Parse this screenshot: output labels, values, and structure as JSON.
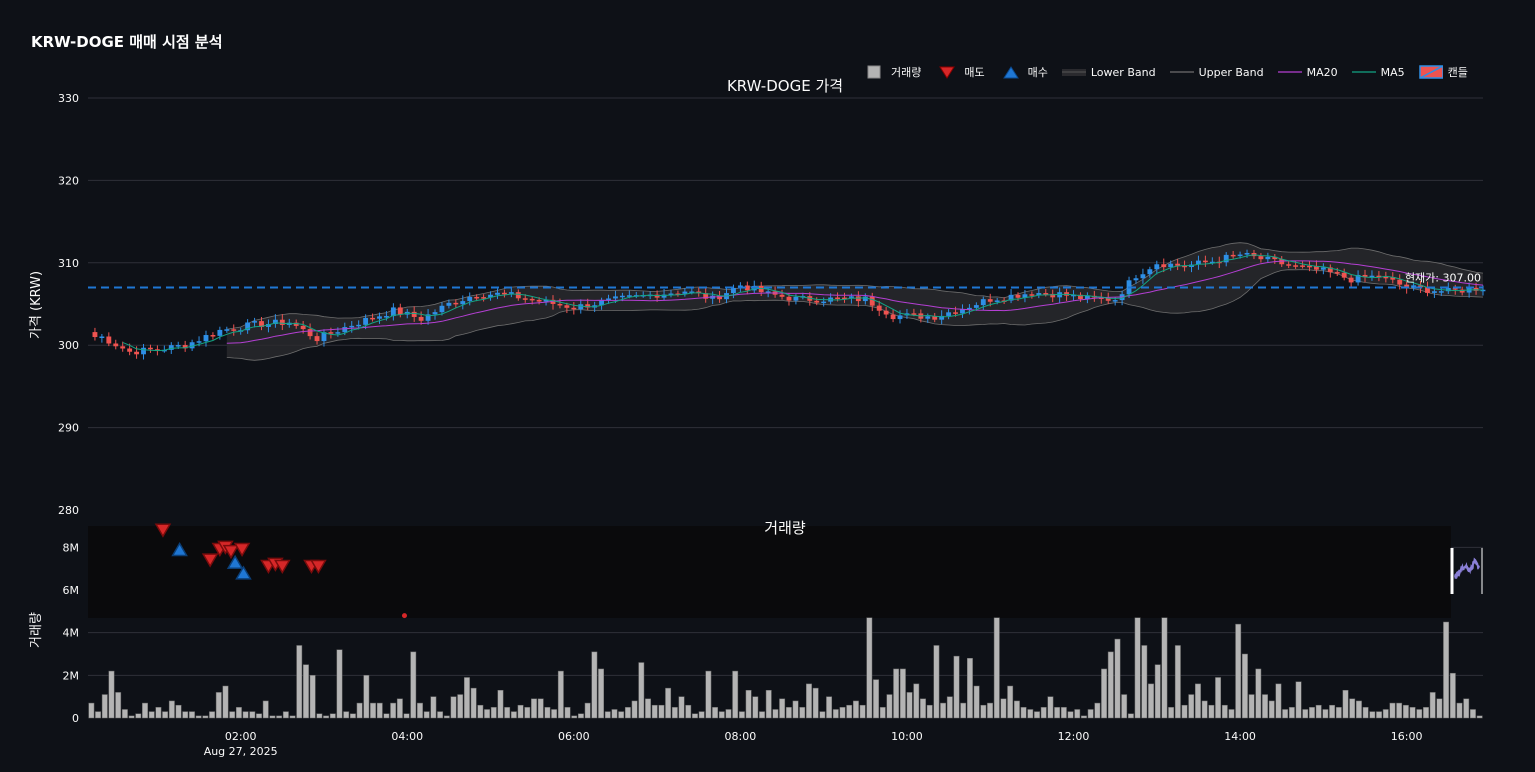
{
  "title": "KRW-DOGE 매매 시점 분석",
  "colors": {
    "background": "#0e1117",
    "grid": "#2e3038",
    "up": "#2e8fe6",
    "down": "#ef5350",
    "ma5": "#13a584",
    "ma20": "#b43fd3",
    "band": "#6e6e6e",
    "current": "#1f77d4",
    "volume": "#b4b4b4",
    "sell": "#d62728",
    "buy": "#1f77d4"
  },
  "legend": {
    "items": [
      {
        "key": "volume",
        "label": "거래량",
        "icon": "gray-square-icon"
      },
      {
        "key": "sell",
        "label": "매도",
        "icon": "down-triangle-icon"
      },
      {
        "key": "buy",
        "label": "매수",
        "icon": "up-triangle-icon"
      },
      {
        "key": "lower",
        "label": "Lower Band",
        "icon": "band-fill-icon"
      },
      {
        "key": "upper",
        "label": "Upper Band",
        "icon": "gray-line-icon"
      },
      {
        "key": "ma20",
        "label": "MA20",
        "icon": "purple-line-icon"
      },
      {
        "key": "ma5",
        "label": "MA5",
        "icon": "teal-line-icon"
      },
      {
        "key": "candle",
        "label": "캔들",
        "icon": "candle-icon"
      }
    ]
  },
  "chart_data": [
    {
      "type": "candlestick",
      "subtitle": "KRW-DOGE 가격",
      "ylabel": "가격 (KRW)",
      "ylim": [
        280,
        330
      ],
      "yticks": [
        280,
        290,
        300,
        310,
        320,
        330
      ],
      "current_price": 307,
      "current_label": "현재가: 307.00",
      "series_names": [
        "캔들",
        "MA5",
        "MA20",
        "Upper Band",
        "Lower Band"
      ],
      "close_anchors": [
        [
          "00:20",
          301.0
        ],
        [
          "00:40",
          299.2
        ],
        [
          "01:00",
          299.5
        ],
        [
          "01:20",
          300.0
        ],
        [
          "01:45",
          301.8
        ],
        [
          "02:10",
          302.5
        ],
        [
          "02:35",
          302.8
        ],
        [
          "02:55",
          300.8
        ],
        [
          "03:20",
          302.5
        ],
        [
          "03:50",
          304.2
        ],
        [
          "04:10",
          303.2
        ],
        [
          "04:30",
          305.0
        ],
        [
          "04:50",
          306.2
        ],
        [
          "05:10",
          306.2
        ],
        [
          "05:30",
          305.5
        ],
        [
          "06:00",
          304.6
        ],
        [
          "06:30",
          305.5
        ],
        [
          "07:00",
          306.2
        ],
        [
          "07:20",
          306.6
        ],
        [
          "07:40",
          305.6
        ],
        [
          "08:00",
          307.3
        ],
        [
          "08:20",
          306.2
        ],
        [
          "08:40",
          305.6
        ],
        [
          "09:10",
          305.6
        ],
        [
          "09:30",
          305.6
        ],
        [
          "09:50",
          303.6
        ],
        [
          "10:20",
          303.5
        ],
        [
          "10:40",
          304.5
        ],
        [
          "11:00",
          305.6
        ],
        [
          "11:30",
          306.4
        ],
        [
          "11:50",
          306.2
        ],
        [
          "12:10",
          305.6
        ],
        [
          "12:30",
          305.6
        ],
        [
          "12:45",
          308.5
        ],
        [
          "13:00",
          310.0
        ],
        [
          "13:20",
          309.6
        ],
        [
          "13:40",
          310.2
        ],
        [
          "14:00",
          311.0
        ],
        [
          "14:20",
          310.3
        ],
        [
          "14:40",
          309.5
        ],
        [
          "15:00",
          309.0
        ],
        [
          "15:20",
          308.0
        ],
        [
          "15:40",
          308.4
        ],
        [
          "16:00",
          307.0
        ],
        [
          "16:30",
          306.5
        ],
        [
          "16:55",
          307.0
        ]
      ]
    },
    {
      "type": "bar",
      "subtitle": "거래량",
      "ylabel": "거래량",
      "ylim": [
        0,
        9000000
      ],
      "yticks": [
        0,
        2000000,
        4000000,
        6000000,
        8000000
      ],
      "ytick_labels": [
        "0",
        "2M",
        "4M",
        "6M",
        "8M"
      ],
      "bar_minutes": 5,
      "volumes": [
        0.7,
        0.3,
        1.1,
        2.2,
        1.2,
        0.4,
        0.1,
        0.2,
        0.7,
        0.3,
        0.5,
        0.3,
        0.8,
        0.6,
        0.3,
        0.3,
        0.1,
        0.1,
        0.3,
        1.2,
        1.5,
        0.3,
        0.5,
        0.3,
        0.3,
        0.2,
        0.8,
        0.1,
        0.1,
        0.3,
        0.1,
        3.4,
        2.5,
        2.0,
        0.2,
        0.1,
        0.2,
        3.2,
        0.3,
        0.2,
        0.7,
        2.0,
        0.7,
        0.7,
        0.2,
        0.7,
        0.9,
        0.2,
        3.1,
        0.7,
        0.3,
        1.0,
        0.3,
        0.1,
        1.0,
        1.1,
        1.9,
        1.4,
        0.6,
        0.4,
        0.5,
        1.3,
        0.5,
        0.3,
        0.6,
        0.5,
        0.9,
        0.9,
        0.5,
        0.4,
        2.2,
        0.5,
        0.1,
        0.2,
        0.7,
        3.1,
        2.3,
        0.3,
        0.4,
        0.3,
        0.5,
        0.8,
        2.6,
        0.9,
        0.6,
        0.6,
        1.4,
        0.5,
        1.0,
        0.6,
        0.2,
        0.3,
        2.2,
        0.5,
        0.3,
        0.4,
        2.2,
        0.3,
        1.3,
        1.0,
        0.3,
        1.3,
        0.4,
        0.9,
        0.5,
        0.8,
        0.5,
        1.6,
        1.4,
        0.3,
        1.0,
        0.4,
        0.5,
        0.6,
        0.8,
        0.6,
        4.7,
        1.8,
        0.5,
        1.1,
        2.3,
        2.3,
        1.2,
        1.6,
        0.9,
        0.6,
        3.4,
        0.7,
        1.0,
        2.9,
        0.7,
        2.8,
        1.5,
        0.6,
        0.7,
        4.7,
        0.9,
        1.5,
        0.8,
        0.5,
        0.4,
        0.3,
        0.5,
        1.0,
        0.5,
        0.5,
        0.3,
        0.4,
        0.1,
        0.4,
        0.7,
        2.3,
        3.1,
        3.7,
        1.1,
        0.2,
        4.7,
        3.4,
        1.6,
        2.5,
        4.7,
        0.5,
        3.4,
        0.6,
        1.1,
        1.6,
        0.8,
        0.6,
        1.9,
        0.6,
        0.4,
        4.4,
        3.0,
        1.1,
        2.3,
        1.1,
        0.8,
        1.6,
        0.4,
        0.5,
        1.7,
        0.4,
        0.5,
        0.6,
        0.4,
        0.6,
        0.5,
        1.3,
        0.9,
        0.8,
        0.5,
        0.3,
        0.3,
        0.4,
        0.7,
        0.7,
        0.6,
        0.5,
        0.4,
        0.5,
        1.2,
        0.9,
        4.5,
        2.1,
        0.7,
        0.9,
        0.4,
        0.1
      ]
    }
  ],
  "x_axis": {
    "tick_labels": [
      "02:00",
      "04:00",
      "06:00",
      "08:00",
      "10:00",
      "12:00",
      "14:00",
      "16:00"
    ],
    "date_label": "Aug 27, 2025",
    "start_time": "00:10",
    "end_time": "16:55"
  },
  "trade_markers": {
    "sells": [
      {
        "time": "01:04",
        "value": 8.8
      },
      {
        "time": "01:38",
        "value": 7.4
      },
      {
        "time": "01:45",
        "value": 7.9
      },
      {
        "time": "01:49",
        "value": 8.0
      },
      {
        "time": "01:53",
        "value": 7.8
      },
      {
        "time": "02:01",
        "value": 7.9
      },
      {
        "time": "02:20",
        "value": 7.1
      },
      {
        "time": "02:25",
        "value": 7.2
      },
      {
        "time": "02:30",
        "value": 7.1
      },
      {
        "time": "02:51",
        "value": 7.1
      },
      {
        "time": "02:56",
        "value": 7.1
      }
    ],
    "buys": [
      {
        "time": "01:16",
        "value": 7.9
      },
      {
        "time": "01:56",
        "value": 7.3
      },
      {
        "time": "02:02",
        "value": 6.8
      }
    ],
    "dot": {
      "time": "03:58",
      "value": 4.8
    }
  },
  "minimap_label": "range-slider"
}
